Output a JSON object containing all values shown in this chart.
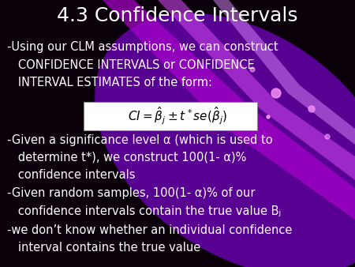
{
  "title": "4.3 Confidence Intervals",
  "title_fontsize": 18,
  "title_color": "#ffffff",
  "background_color": "#0a000a",
  "text_color": "#ffffff",
  "body_fontsize": 10.5,
  "formula_text": "$CI = \\hat{\\beta}_j \\pm t^* se(\\hat{\\beta}_j)$",
  "bullet1_line1": "-Using our CLM assumptions, we can construct",
  "bullet1_line2": "   CONFIDENCE INTERVALS or CONFIDENCE",
  "bullet1_line3": "   INTERVAL ESTIMATES of the form:",
  "bullet2_line1": "-Given a significance level α (which is used to",
  "bullet2_line2": "   determine t*), we construct 100(1- α)%",
  "bullet2_line3": "   confidence intervals",
  "bullet3_line1": "-Given random samples, 100(1- α)% of our",
  "bullet3_line2": "   confidence intervals contain the true value Bⱼ",
  "bullet4_line1": "-we don’t know whether an individual confidence",
  "bullet4_line2": "   interval contains the true value",
  "font_family": "DejaVu Sans"
}
